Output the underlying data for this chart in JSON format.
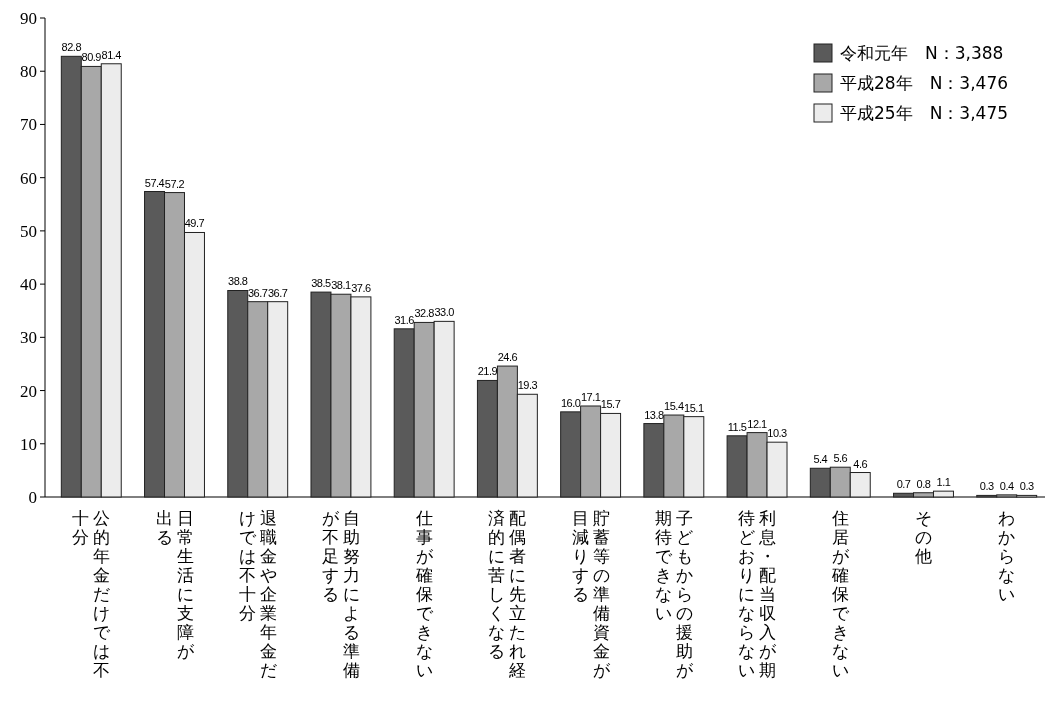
{
  "chart_data": {
    "type": "bar",
    "categories": [
      "公的年金だけでは不十分",
      "日常生活に支障が出る",
      "退職金や企業年金だけでは不十分",
      "自助努力による準備が不足する",
      "仕事が確保できない",
      "配偶者に先立たれ経済的に苦しくなる",
      "貯蓄等の準備資金が目減りする",
      "子どもからの援助が期待できない",
      "利息・配当収入が期待どおりにならない",
      "住居が確保できない",
      "その他",
      "わからない"
    ],
    "series": [
      {
        "name": "令和元年　N：3,388",
        "color": "#5a5a5a",
        "values": [
          82.8,
          57.4,
          38.8,
          38.5,
          31.6,
          21.9,
          16.0,
          13.8,
          11.5,
          5.4,
          0.7,
          0.3
        ],
        "value_labels": [
          "82.8",
          "57.4",
          "38.8",
          "38.5",
          "31.6",
          "21.9",
          "16.0",
          "13.8",
          "11.5",
          "5.4",
          "0.7",
          "0.3"
        ]
      },
      {
        "name": "平成28年　N：3,476",
        "color": "#a8a8a8",
        "values": [
          80.9,
          57.2,
          36.7,
          38.1,
          32.8,
          24.6,
          17.1,
          15.4,
          12.1,
          5.6,
          0.8,
          0.4
        ],
        "value_labels": [
          "80.9",
          "57.2",
          "36.7",
          "38.1",
          "32.8",
          "24.6",
          "17.1",
          "15.4",
          "12.1",
          "5.6",
          "0.8",
          "0.4"
        ]
      },
      {
        "name": "平成25年　N：3,475",
        "color": "#ececec",
        "values": [
          81.4,
          49.7,
          36.7,
          37.6,
          33.0,
          19.3,
          15.7,
          15.1,
          10.3,
          4.6,
          1.1,
          0.3
        ],
        "value_labels": [
          "81.4",
          "49.7",
          "36.7",
          "37.6",
          "33.0",
          "19.3",
          "15.7",
          "15.1",
          "10.3",
          "4.6",
          "1.1",
          "0.3"
        ]
      }
    ],
    "ylim": [
      0,
      90
    ],
    "yticks": [
      0,
      10,
      20,
      30,
      40,
      50,
      60,
      70,
      80,
      90
    ],
    "legend": "top right",
    "grid": false
  }
}
